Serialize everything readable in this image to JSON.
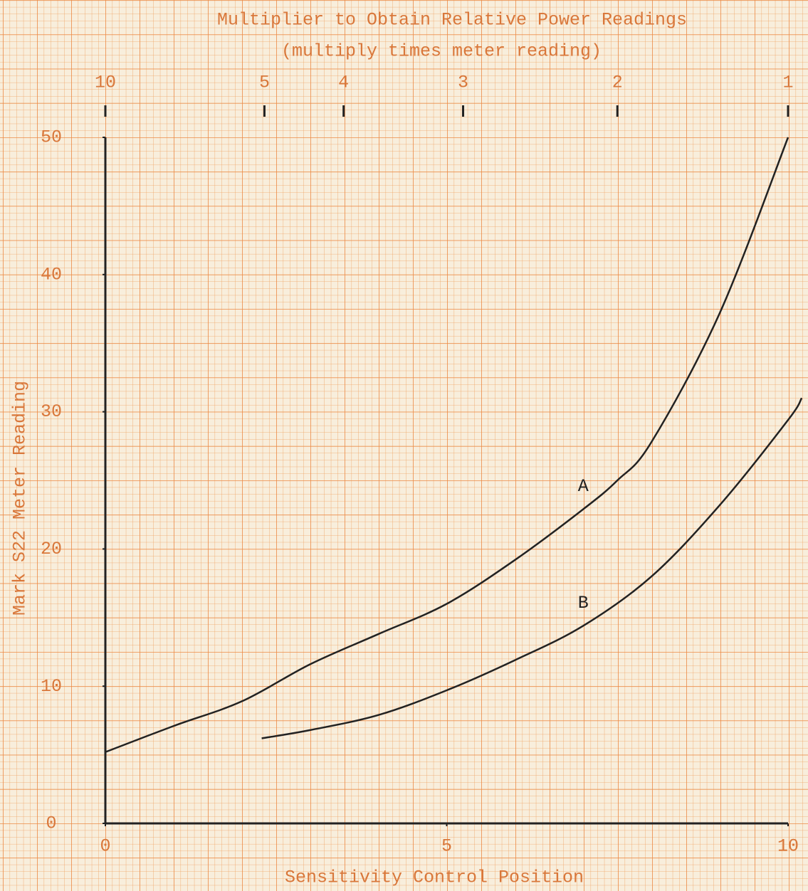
{
  "chart_data": {
    "type": "line",
    "title": "Multiplier to Obtain Relative Power Readings",
    "subtitle": "(multiply times meter reading)",
    "x_label": "Sensitivity Control Position",
    "y_label": "Mark S22 Meter Reading",
    "xlim": [
      0,
      10
    ],
    "ylim": [
      0,
      50
    ],
    "xticks": [
      0,
      5,
      10
    ],
    "yticks": [
      0,
      10,
      20,
      30,
      40,
      50
    ],
    "x2ticks": [
      {
        "value": 0,
        "label": "10"
      },
      {
        "value": 2.33,
        "label": "5"
      },
      {
        "value": 3.49,
        "label": "4"
      },
      {
        "value": 5.24,
        "label": "3"
      },
      {
        "value": 7.5,
        "label": "2"
      },
      {
        "value": 10,
        "label": "1"
      }
    ],
    "series": [
      {
        "name": "A",
        "color": "#222222",
        "x": [
          0,
          1,
          2,
          3,
          4,
          5,
          6,
          7,
          7.5,
          8,
          9,
          10
        ],
        "values": [
          5.2,
          7.1,
          8.9,
          11.6,
          13.8,
          16.0,
          19.2,
          22.9,
          25.0,
          27.8,
          37.2,
          50
        ]
      },
      {
        "name": "B",
        "color": "#222222",
        "x": [
          2.29,
          3,
          4,
          5,
          6,
          7,
          8,
          9,
          10,
          10.2
        ],
        "values": [
          6.2,
          6.8,
          7.9,
          9.7,
          11.9,
          14.4,
          18.0,
          23.2,
          29.4,
          31.0
        ]
      }
    ]
  }
}
